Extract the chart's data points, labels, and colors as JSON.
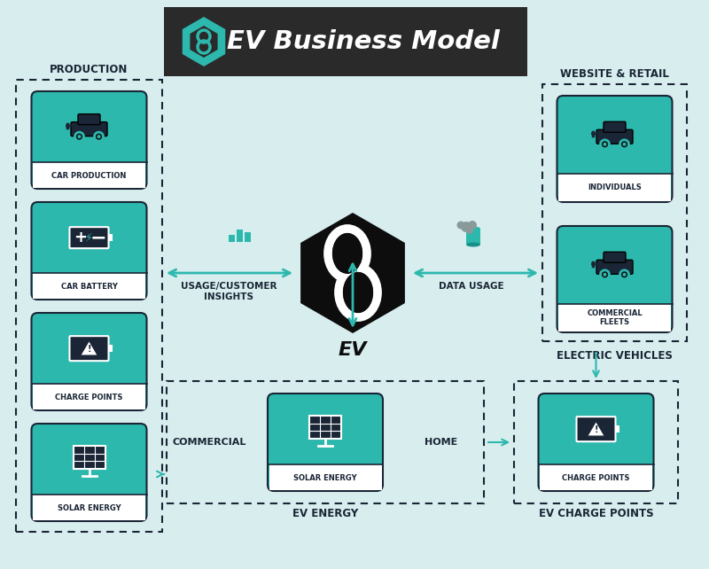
{
  "bg_color": "#d8eeee",
  "teal_color": "#2db8ae",
  "dark_color": "#1a2535",
  "white": "#ffffff",
  "title_bg": "#2a2a2a",
  "title_text": "EV Business Model",
  "center_label": "EV",
  "section_labels": {
    "production": "PRODUCTION",
    "website": "WEBSITE & RETAIL",
    "ev_energy": "EV ENERGY",
    "ev_charge": "EV CHARGE POINTS",
    "electric_vehicles": "ELECTRIC VEHICLES"
  },
  "arrow_label_left": "USAGE/CUSTOMER\nINSIGHTS",
  "arrow_label_right": "DATA USAGE",
  "label_commercial": "COMMERCIAL",
  "label_home": "HOME",
  "prod_items": [
    "CAR PRODUCTION",
    "CAR BATTERY",
    "CHARGE POINTS",
    "SOLAR ENERGY"
  ],
  "web_items": [
    "INDIVIDUALS",
    "COMMERCIAL\nFLEETS"
  ]
}
